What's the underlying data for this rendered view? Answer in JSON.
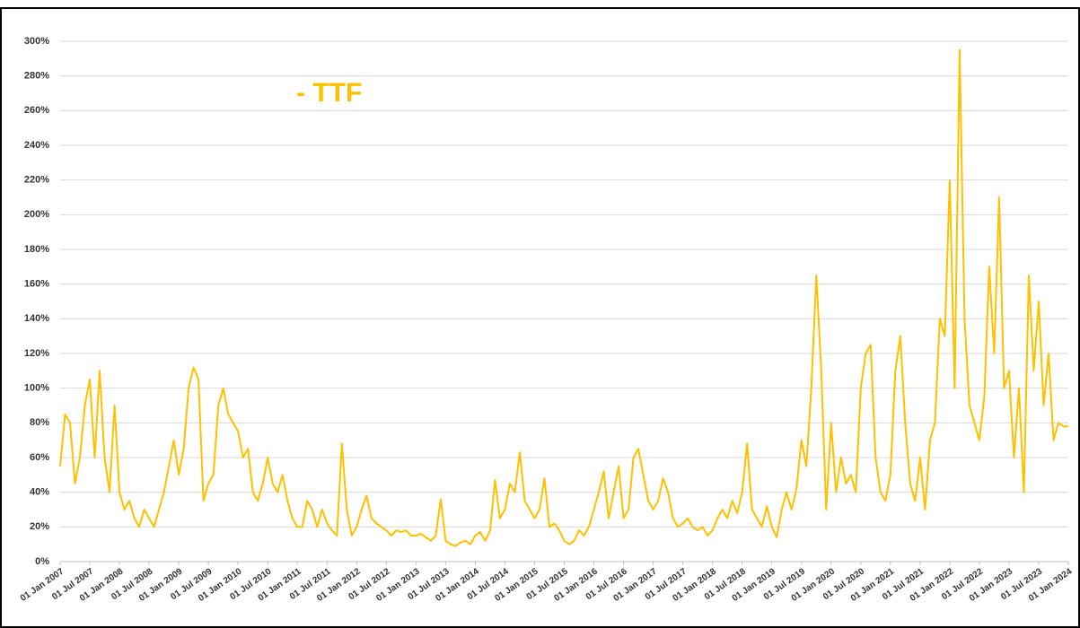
{
  "chart_data": {
    "type": "line",
    "annotation": "- TTF",
    "x": [
      "2007-01",
      "2007-02",
      "2007-03",
      "2007-04",
      "2007-05",
      "2007-06",
      "2007-07",
      "2007-08",
      "2007-09",
      "2007-10",
      "2007-11",
      "2007-12",
      "2008-01",
      "2008-02",
      "2008-03",
      "2008-04",
      "2008-05",
      "2008-06",
      "2008-07",
      "2008-08",
      "2008-09",
      "2008-10",
      "2008-11",
      "2008-12",
      "2009-01",
      "2009-02",
      "2009-03",
      "2009-04",
      "2009-05",
      "2009-06",
      "2009-07",
      "2009-08",
      "2009-09",
      "2009-10",
      "2009-11",
      "2009-12",
      "2010-01",
      "2010-02",
      "2010-03",
      "2010-04",
      "2010-05",
      "2010-06",
      "2010-07",
      "2010-08",
      "2010-09",
      "2010-10",
      "2010-11",
      "2010-12",
      "2011-01",
      "2011-02",
      "2011-03",
      "2011-04",
      "2011-05",
      "2011-06",
      "2011-07",
      "2011-08",
      "2011-09",
      "2011-10",
      "2011-11",
      "2011-12",
      "2012-01",
      "2012-02",
      "2012-03",
      "2012-04",
      "2012-05",
      "2012-06",
      "2012-07",
      "2012-08",
      "2012-09",
      "2012-10",
      "2012-11",
      "2012-12",
      "2013-01",
      "2013-02",
      "2013-03",
      "2013-04",
      "2013-05",
      "2013-06",
      "2013-07",
      "2013-08",
      "2013-09",
      "2013-10",
      "2013-11",
      "2013-12",
      "2014-01",
      "2014-02",
      "2014-03",
      "2014-04",
      "2014-05",
      "2014-06",
      "2014-07",
      "2014-08",
      "2014-09",
      "2014-10",
      "2014-11",
      "2014-12",
      "2015-01",
      "2015-02",
      "2015-03",
      "2015-04",
      "2015-05",
      "2015-06",
      "2015-07",
      "2015-08",
      "2015-09",
      "2015-10",
      "2015-11",
      "2015-12",
      "2016-01",
      "2016-02",
      "2016-03",
      "2016-04",
      "2016-05",
      "2016-06",
      "2016-07",
      "2016-08",
      "2016-09",
      "2016-10",
      "2016-11",
      "2016-12",
      "2017-01",
      "2017-02",
      "2017-03",
      "2017-04",
      "2017-05",
      "2017-06",
      "2017-07",
      "2017-08",
      "2017-09",
      "2017-10",
      "2017-11",
      "2017-12",
      "2018-01",
      "2018-02",
      "2018-03",
      "2018-04",
      "2018-05",
      "2018-06",
      "2018-07",
      "2018-08",
      "2018-09",
      "2018-10",
      "2018-11",
      "2018-12",
      "2019-01",
      "2019-02",
      "2019-03",
      "2019-04",
      "2019-05",
      "2019-06",
      "2019-07",
      "2019-08",
      "2019-09",
      "2019-10",
      "2019-11",
      "2019-12",
      "2020-01",
      "2020-02",
      "2020-03",
      "2020-04",
      "2020-05",
      "2020-06",
      "2020-07",
      "2020-08",
      "2020-09",
      "2020-10",
      "2020-11",
      "2020-12",
      "2021-01",
      "2021-02",
      "2021-03",
      "2021-04",
      "2021-05",
      "2021-06",
      "2021-07",
      "2021-08",
      "2021-09",
      "2021-10",
      "2021-11",
      "2021-12",
      "2022-01",
      "2022-02",
      "2022-03",
      "2022-04",
      "2022-05",
      "2022-06",
      "2022-07",
      "2022-08",
      "2022-09",
      "2022-10",
      "2022-11",
      "2022-12",
      "2023-01",
      "2023-02",
      "2023-03",
      "2023-04",
      "2023-05",
      "2023-06",
      "2023-07",
      "2023-08",
      "2023-09",
      "2023-10",
      "2023-11",
      "2023-12",
      "2024-01"
    ],
    "series": [
      {
        "name": "TTF",
        "color": "#ffc000",
        "values": [
          55,
          85,
          80,
          45,
          60,
          90,
          105,
          60,
          110,
          60,
          40,
          90,
          40,
          30,
          35,
          25,
          20,
          30,
          25,
          20,
          30,
          40,
          55,
          70,
          50,
          65,
          100,
          112,
          105,
          35,
          45,
          50,
          90,
          100,
          85,
          80,
          75,
          60,
          65,
          40,
          35,
          45,
          60,
          45,
          40,
          50,
          35,
          25,
          20,
          20,
          35,
          30,
          20,
          30,
          22,
          18,
          15,
          68,
          30,
          15,
          20,
          30,
          38,
          25,
          22,
          20,
          18,
          15,
          18,
          17,
          18,
          15,
          15,
          16,
          14,
          12,
          15,
          36,
          12,
          10,
          9,
          11,
          12,
          10,
          15,
          17,
          12,
          18,
          47,
          25,
          30,
          45,
          40,
          63,
          35,
          30,
          25,
          30,
          48,
          20,
          22,
          18,
          12,
          10,
          12,
          18,
          15,
          20,
          30,
          40,
          52,
          25,
          40,
          55,
          25,
          30,
          60,
          65,
          50,
          35,
          30,
          35,
          48,
          40,
          25,
          20,
          22,
          25,
          20,
          18,
          20,
          15,
          18,
          25,
          30,
          25,
          35,
          28,
          40,
          68,
          30,
          25,
          20,
          32,
          20,
          14,
          30,
          40,
          30,
          42,
          70,
          55,
          100,
          165,
          110,
          30,
          80,
          40,
          60,
          45,
          50,
          40,
          100,
          120,
          125,
          60,
          40,
          35,
          50,
          110,
          130,
          80,
          45,
          35,
          60,
          30,
          70,
          80,
          140,
          130,
          220,
          100,
          295,
          140,
          90,
          80,
          70,
          95,
          170,
          120,
          210,
          100,
          110,
          60,
          100,
          40,
          165,
          110,
          150,
          90,
          120,
          70,
          80,
          78,
          78
        ]
      }
    ],
    "xlim": [
      "2007-01",
      "2024-01"
    ],
    "xticks": [
      {
        "value": "2007-01",
        "label": "01 Jan 2007"
      },
      {
        "value": "2007-07",
        "label": "01 Jul 2007"
      },
      {
        "value": "2008-01",
        "label": "01 Jan 2008"
      },
      {
        "value": "2008-07",
        "label": "01 Jul 2008"
      },
      {
        "value": "2009-01",
        "label": "01 Jan 2009"
      },
      {
        "value": "2009-07",
        "label": "01 Jul 2009"
      },
      {
        "value": "2010-01",
        "label": "01 Jan 2010"
      },
      {
        "value": "2010-07",
        "label": "01 Jul 2010"
      },
      {
        "value": "2011-01",
        "label": "01 Jan 2011"
      },
      {
        "value": "2011-07",
        "label": "01 Jul 2011"
      },
      {
        "value": "2012-01",
        "label": "01 Jan 2012"
      },
      {
        "value": "2012-07",
        "label": "01 Jul 2012"
      },
      {
        "value": "2013-01",
        "label": "01 Jan 2013"
      },
      {
        "value": "2013-07",
        "label": "01 Jul 2013"
      },
      {
        "value": "2014-01",
        "label": "01 Jan 2014"
      },
      {
        "value": "2014-07",
        "label": "01 Jul 2014"
      },
      {
        "value": "2015-01",
        "label": "01 Jan 2015"
      },
      {
        "value": "2015-07",
        "label": "01 Jul 2015"
      },
      {
        "value": "2016-01",
        "label": "01 Jan 2016"
      },
      {
        "value": "2016-07",
        "label": "01 Jul 2016"
      },
      {
        "value": "2017-01",
        "label": "01 Jan 2017"
      },
      {
        "value": "2017-07",
        "label": "01 Jul 2017"
      },
      {
        "value": "2018-01",
        "label": "01 Jan 2018"
      },
      {
        "value": "2018-07",
        "label": "01 Jul 2018"
      },
      {
        "value": "2019-01",
        "label": "01 Jan 2019"
      },
      {
        "value": "2019-07",
        "label": "01 Jul 2019"
      },
      {
        "value": "2020-01",
        "label": "01 Jan 2020"
      },
      {
        "value": "2020-07",
        "label": "01 Jul 2020"
      },
      {
        "value": "2021-01",
        "label": "01 Jan 2021"
      },
      {
        "value": "2021-07",
        "label": "01 Jul 2021"
      },
      {
        "value": "2022-01",
        "label": "01 Jan 2022"
      },
      {
        "value": "2022-07",
        "label": "01 Jul 2022"
      },
      {
        "value": "2023-01",
        "label": "01 Jan 2023"
      },
      {
        "value": "2023-07",
        "label": "01 Jul 2023"
      },
      {
        "value": "2024-01",
        "label": "01 Jan 2024"
      }
    ],
    "ylim": [
      0,
      300
    ],
    "yticks": [
      {
        "value": 0,
        "label": "0%"
      },
      {
        "value": 20,
        "label": "20%"
      },
      {
        "value": 40,
        "label": "40%"
      },
      {
        "value": 60,
        "label": "60%"
      },
      {
        "value": 80,
        "label": "80%"
      },
      {
        "value": 100,
        "label": "100%"
      },
      {
        "value": 120,
        "label": "120%"
      },
      {
        "value": 140,
        "label": "140%"
      },
      {
        "value": 160,
        "label": "160%"
      },
      {
        "value": 180,
        "label": "180%"
      },
      {
        "value": 200,
        "label": "200%"
      },
      {
        "value": 220,
        "label": "220%"
      },
      {
        "value": 240,
        "label": "240%"
      },
      {
        "value": 260,
        "label": "260%"
      },
      {
        "value": 280,
        "label": "280%"
      },
      {
        "value": 300,
        "label": "300%"
      }
    ],
    "grid": true
  }
}
